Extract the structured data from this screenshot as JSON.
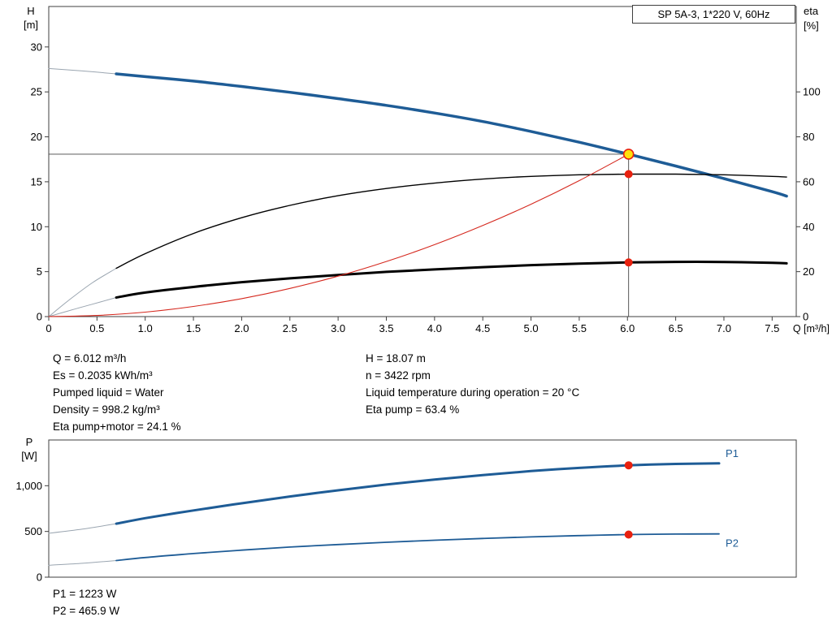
{
  "colors": {
    "frame": "#3f3f3f",
    "curve_blue": "#1e5c96",
    "curve_black": "#000000",
    "system_red": "#d5281e",
    "marker_red": "#e8210f",
    "duty_yellow": "#ffe10a",
    "extrapolation_gray": "#9aa5b0"
  },
  "chart_data": [
    {
      "id": "hq-eta",
      "type": "line",
      "title": "SP 5A-3, 1*220 V, 60Hz",
      "grid": false,
      "x_axis": {
        "label": "Q [m³/h]",
        "min": 0,
        "max": 7.75,
        "ticks": [
          0,
          0.5,
          1,
          1.5,
          2,
          2.5,
          3,
          3.5,
          4,
          4.5,
          5,
          5.5,
          6,
          6.5,
          7,
          7.5
        ],
        "tick_labels": [
          "0",
          "0.5",
          "1.0",
          "1.5",
          "2.0",
          "2.5",
          "3.0",
          "3.5",
          "4.0",
          "4.5",
          "5.0",
          "5.5",
          "6.0",
          "6.5",
          "7.0",
          "7.5"
        ]
      },
      "y_left": {
        "label": "H [m]",
        "min": 0,
        "max": 34.5,
        "ticks": [
          0,
          5,
          10,
          15,
          20,
          25,
          30
        ],
        "tick_labels": [
          "0",
          "5",
          "10",
          "15",
          "20",
          "25",
          "30"
        ]
      },
      "y_right": {
        "label": "eta [%]",
        "min": 0,
        "max": 138,
        "ticks": [
          0,
          20,
          40,
          60,
          80,
          100
        ],
        "tick_labels": [
          "0",
          "20",
          "40",
          "60",
          "80",
          "100"
        ]
      },
      "series": [
        {
          "name": "pump-curve-extrapolation",
          "axis": "left",
          "color": "#9aa5b0",
          "width": 1,
          "points": [
            [
              0,
              27.6
            ],
            [
              0.35,
              27.33
            ],
            [
              0.7,
              27.0
            ]
          ]
        },
        {
          "name": "pump-curve",
          "axis": "left",
          "color": "#1e5c96",
          "width": 3.5,
          "points": [
            [
              0.7,
              27.0
            ],
            [
              1,
              26.7
            ],
            [
              1.5,
              26.2
            ],
            [
              2,
              25.6
            ],
            [
              2.5,
              24.95
            ],
            [
              3,
              24.25
            ],
            [
              3.5,
              23.5
            ],
            [
              4,
              22.65
            ],
            [
              4.5,
              21.7
            ],
            [
              5,
              20.6
            ],
            [
              5.5,
              19.4
            ],
            [
              6,
              18.1
            ],
            [
              6.5,
              16.75
            ],
            [
              7,
              15.35
            ],
            [
              7.5,
              13.9
            ],
            [
              7.65,
              13.4
            ]
          ]
        },
        {
          "name": "eta-pump-extrapolation",
          "axis": "right",
          "color": "#9aa5b0",
          "width": 1,
          "points": [
            [
              0,
              0
            ],
            [
              0.2,
              7
            ],
            [
              0.45,
              15
            ],
            [
              0.7,
              21.5
            ]
          ]
        },
        {
          "name": "eta-pump-curve",
          "axis": "right",
          "color": "#000000",
          "width": 1.4,
          "points": [
            [
              0.7,
              21.5
            ],
            [
              1,
              28
            ],
            [
              1.5,
              37
            ],
            [
              2,
              44
            ],
            [
              2.5,
              49.5
            ],
            [
              3,
              53.8
            ],
            [
              3.5,
              57
            ],
            [
              4,
              59.4
            ],
            [
              4.5,
              61.2
            ],
            [
              5,
              62.4
            ],
            [
              5.5,
              63.1
            ],
            [
              6,
              63.4
            ],
            [
              6.5,
              63.4
            ],
            [
              7,
              63.1
            ],
            [
              7.5,
              62.4
            ],
            [
              7.65,
              62.1
            ]
          ]
        },
        {
          "name": "eta-pump-motor-extrapolation",
          "axis": "right",
          "color": "#9aa5b0",
          "width": 1,
          "points": [
            [
              0,
              0
            ],
            [
              0.2,
              2.5
            ],
            [
              0.45,
              5.5
            ],
            [
              0.7,
              8.5
            ]
          ]
        },
        {
          "name": "eta-pump-motor-curve",
          "axis": "right",
          "color": "#000000",
          "width": 3,
          "points": [
            [
              0.7,
              8.5
            ],
            [
              1,
              10.7
            ],
            [
              1.5,
              13.2
            ],
            [
              2,
              15.3
            ],
            [
              2.5,
              17
            ],
            [
              3,
              18.5
            ],
            [
              3.5,
              19.9
            ],
            [
              4,
              21
            ],
            [
              4.5,
              22
            ],
            [
              5,
              22.9
            ],
            [
              5.5,
              23.6
            ],
            [
              6,
              24.1
            ],
            [
              6.5,
              24.35
            ],
            [
              7,
              24.3
            ],
            [
              7.5,
              23.9
            ],
            [
              7.65,
              23.7
            ]
          ]
        },
        {
          "name": "system-curve",
          "axis": "left",
          "color": "#d5281e",
          "width": 1.1,
          "points": [
            [
              0,
              0
            ],
            [
              0.5,
              0.13
            ],
            [
              1,
              0.5
            ],
            [
              1.5,
              1.13
            ],
            [
              2,
              2
            ],
            [
              2.5,
              3.13
            ],
            [
              3,
              4.5
            ],
            [
              3.5,
              6.13
            ],
            [
              4,
              8
            ],
            [
              4.5,
              10.13
            ],
            [
              5,
              12.5
            ],
            [
              5.5,
              15.13
            ],
            [
              6.012,
              18.07
            ]
          ]
        }
      ],
      "duty_point": {
        "q": 6.012,
        "h": 18.07,
        "eta_pump": 63.4,
        "eta_pump_motor": 24.1
      }
    },
    {
      "id": "power",
      "type": "line",
      "grid": false,
      "x_axis": {
        "min": 0,
        "max": 7.75
      },
      "y_axis": {
        "label": "P [W]",
        "min": 0,
        "max": 1500,
        "ticks": [
          0,
          500,
          1000
        ],
        "tick_labels": [
          "0",
          "500",
          "1,000"
        ]
      },
      "series": [
        {
          "name": "p1-extrapolation",
          "color": "#9aa5b0",
          "width": 1,
          "points": [
            [
              0,
              480
            ],
            [
              0.35,
              525
            ],
            [
              0.7,
              585
            ]
          ]
        },
        {
          "name": "p1-curve",
          "color": "#1e5c96",
          "width": 3,
          "end_label": "P1",
          "end_label_pos": "above",
          "points": [
            [
              0.7,
              585
            ],
            [
              1,
              645
            ],
            [
              1.5,
              730
            ],
            [
              2,
              808
            ],
            [
              2.5,
              882
            ],
            [
              3,
              950
            ],
            [
              3.5,
              1013
            ],
            [
              4,
              1068
            ],
            [
              4.5,
              1117
            ],
            [
              5,
              1160
            ],
            [
              5.5,
              1195
            ],
            [
              6,
              1222
            ],
            [
              6.5,
              1238
            ],
            [
              6.95,
              1244
            ]
          ]
        },
        {
          "name": "p2-extrapolation",
          "color": "#9aa5b0",
          "width": 1,
          "points": [
            [
              0,
              130
            ],
            [
              0.35,
              152
            ],
            [
              0.7,
              182
            ]
          ]
        },
        {
          "name": "p2-curve",
          "color": "#1e5c96",
          "width": 1.8,
          "end_label": "P2",
          "end_label_pos": "below",
          "points": [
            [
              0.7,
              182
            ],
            [
              1,
              215
            ],
            [
              1.5,
              258
            ],
            [
              2,
              296
            ],
            [
              2.5,
              329
            ],
            [
              3,
              357
            ],
            [
              3.5,
              382
            ],
            [
              4,
              404
            ],
            [
              4.5,
              423
            ],
            [
              5,
              440
            ],
            [
              5.5,
              454
            ],
            [
              6,
              466
            ],
            [
              6.5,
              471
            ],
            [
              6.95,
              473
            ]
          ]
        }
      ],
      "duty_point": {
        "q": 6.012,
        "p1": 1223,
        "p2": 465.9
      }
    }
  ],
  "info": {
    "left": [
      "Q = 6.012 m³/h",
      "Es = 0.2035 kWh/m³",
      "Pumped liquid = Water",
      "Density = 998.2 kg/m³",
      "Eta pump+motor = 24.1 %"
    ],
    "right": [
      "H = 18.07 m",
      "n = 3422 rpm",
      "Liquid temperature during operation = 20 °C",
      "Eta pump = 63.4 %"
    ],
    "power": [
      "P1 = 1223 W",
      "P2 = 465.9 W"
    ]
  }
}
